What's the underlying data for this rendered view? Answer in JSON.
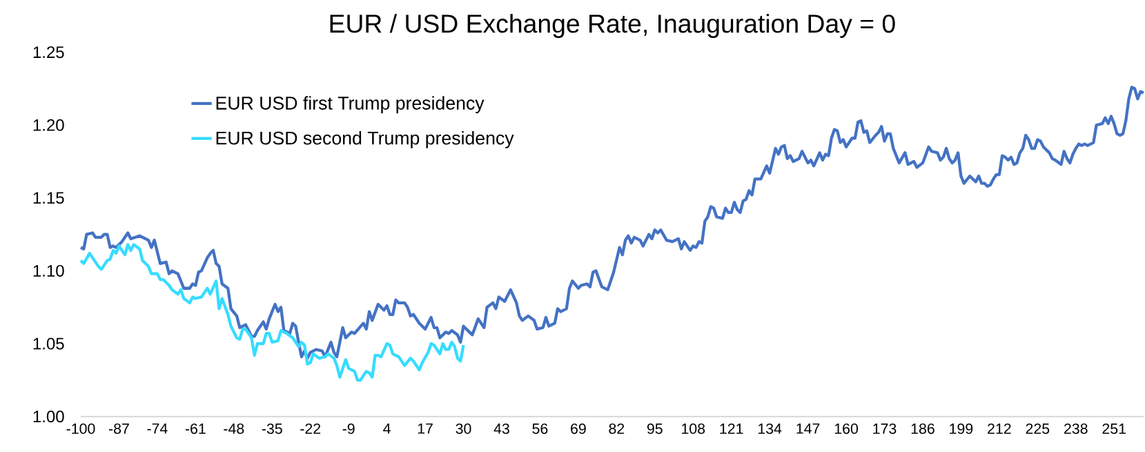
{
  "chart_data": {
    "type": "line",
    "title": "EUR / USD Exchange Rate, Inauguration Day = 0",
    "xlim": [
      -100,
      261
    ],
    "xticks": [
      -100,
      -87,
      -74,
      -61,
      -48,
      -35,
      -22,
      -9,
      4,
      17,
      30,
      43,
      56,
      69,
      82,
      95,
      108,
      121,
      134,
      147,
      160,
      173,
      186,
      199,
      212,
      225,
      238,
      251
    ],
    "ylim": [
      1.0,
      1.25
    ],
    "yticks": [
      {
        "value": 1.0,
        "label": "1.00"
      },
      {
        "value": 1.05,
        "label": "1.05"
      },
      {
        "value": 1.1,
        "label": "1.10"
      },
      {
        "value": 1.15,
        "label": "1.15"
      },
      {
        "value": 1.2,
        "label": "1.20"
      },
      {
        "value": 1.25,
        "label": "1.25"
      }
    ],
    "grid": false,
    "legend": "top left",
    "marker": "none",
    "line_style": "solid",
    "series": [
      {
        "name": "EUR USD first Trump presidency",
        "color": "#4472c4",
        "x": [
          -100,
          -99,
          -98,
          -96,
          -95,
          -93,
          -92,
          -91,
          -90,
          -89,
          -88,
          -86,
          -84,
          -83,
          -80,
          -78,
          -77,
          -76,
          -75,
          -73,
          -71,
          -70,
          -69,
          -67,
          -65,
          -63,
          -62,
          -61,
          -60,
          -59,
          -57,
          -56,
          -55,
          -54,
          -53,
          -52,
          -50,
          -49,
          -47,
          -46,
          -44,
          -42,
          -41,
          -40,
          -38,
          -37,
          -36,
          -34,
          -33,
          -32,
          -31,
          -29,
          -28,
          -27,
          -26,
          -25,
          -24,
          -23,
          -22,
          -20,
          -18,
          -17,
          -15,
          -14,
          -13,
          -11,
          -10,
          -8,
          -7,
          -4,
          -3,
          -2,
          -1,
          1,
          3,
          4,
          5,
          6,
          7,
          8,
          10,
          11,
          12,
          13,
          15,
          17,
          19,
          20,
          21,
          22,
          24,
          25,
          26,
          28,
          29,
          30,
          32,
          33,
          35,
          37,
          38,
          40,
          41,
          42,
          44,
          46,
          48,
          49,
          50,
          52,
          54,
          55,
          57,
          58,
          59,
          61,
          62,
          63,
          65,
          66,
          67,
          69,
          70,
          72,
          73,
          74,
          75,
          77,
          79,
          81,
          83,
          84,
          85,
          86,
          87,
          88,
          90,
          91,
          93,
          94,
          95,
          96,
          97,
          99,
          101,
          103,
          104,
          105,
          107,
          108,
          109,
          110,
          111,
          112,
          113,
          114,
          115,
          116,
          118,
          119,
          120,
          121,
          122,
          123,
          124,
          125,
          126,
          127,
          128,
          129,
          131,
          133,
          134,
          136,
          137,
          138,
          139,
          140,
          141,
          142,
          144,
          145,
          147,
          148,
          149,
          151,
          152,
          153,
          154,
          155,
          156,
          157,
          158,
          159,
          160,
          162,
          163,
          164,
          165,
          166,
          167,
          168,
          170,
          171,
          172,
          173,
          174,
          175,
          176,
          178,
          180,
          181,
          183,
          184,
          186,
          188,
          189,
          191,
          192,
          193,
          194,
          195,
          196,
          197,
          198,
          199,
          200,
          202,
          204,
          205,
          206,
          207,
          208,
          209,
          210,
          211,
          212,
          213,
          214,
          215,
          216,
          217,
          218,
          219,
          220,
          221,
          222,
          223,
          224,
          225,
          226,
          227,
          229,
          230,
          231,
          233,
          234,
          235,
          236,
          237,
          238,
          239,
          240,
          241,
          242,
          244,
          245,
          247,
          248,
          249,
          250,
          251,
          252,
          253,
          254,
          255,
          256,
          257,
          258,
          259,
          260,
          261
        ],
        "values": [
          1.116,
          1.115,
          1.125,
          1.126,
          1.123,
          1.123,
          1.125,
          1.125,
          1.116,
          1.117,
          1.116,
          1.12,
          1.126,
          1.122,
          1.124,
          1.122,
          1.121,
          1.116,
          1.121,
          1.105,
          1.106,
          1.098,
          1.1,
          1.098,
          1.088,
          1.088,
          1.091,
          1.09,
          1.099,
          1.1,
          1.109,
          1.112,
          1.114,
          1.105,
          1.103,
          1.091,
          1.088,
          1.074,
          1.069,
          1.061,
          1.063,
          1.055,
          1.055,
          1.059,
          1.065,
          1.06,
          1.067,
          1.077,
          1.072,
          1.075,
          1.059,
          1.057,
          1.064,
          1.062,
          1.051,
          1.041,
          1.045,
          1.04,
          1.044,
          1.046,
          1.045,
          1.041,
          1.051,
          1.044,
          1.041,
          1.061,
          1.054,
          1.058,
          1.057,
          1.064,
          1.06,
          1.072,
          1.066,
          1.077,
          1.073,
          1.076,
          1.07,
          1.07,
          1.08,
          1.078,
          1.078,
          1.075,
          1.069,
          1.07,
          1.064,
          1.06,
          1.068,
          1.061,
          1.061,
          1.054,
          1.058,
          1.057,
          1.059,
          1.056,
          1.051,
          1.062,
          1.058,
          1.056,
          1.067,
          1.061,
          1.075,
          1.078,
          1.074,
          1.082,
          1.079,
          1.087,
          1.078,
          1.069,
          1.066,
          1.069,
          1.066,
          1.06,
          1.061,
          1.068,
          1.062,
          1.064,
          1.074,
          1.072,
          1.074,
          1.088,
          1.093,
          1.088,
          1.09,
          1.091,
          1.089,
          1.099,
          1.1,
          1.089,
          1.087,
          1.099,
          1.116,
          1.111,
          1.121,
          1.124,
          1.119,
          1.123,
          1.121,
          1.117,
          1.125,
          1.122,
          1.128,
          1.126,
          1.128,
          1.121,
          1.12,
          1.122,
          1.115,
          1.12,
          1.114,
          1.117,
          1.116,
          1.12,
          1.119,
          1.134,
          1.137,
          1.144,
          1.143,
          1.137,
          1.136,
          1.143,
          1.14,
          1.14,
          1.147,
          1.142,
          1.14,
          1.148,
          1.149,
          1.155,
          1.152,
          1.163,
          1.163,
          1.172,
          1.167,
          1.184,
          1.18,
          1.185,
          1.186,
          1.177,
          1.179,
          1.175,
          1.177,
          1.182,
          1.174,
          1.176,
          1.172,
          1.181,
          1.176,
          1.18,
          1.179,
          1.191,
          1.197,
          1.196,
          1.188,
          1.19,
          1.185,
          1.191,
          1.191,
          1.202,
          1.203,
          1.195,
          1.196,
          1.188,
          1.193,
          1.195,
          1.199,
          1.189,
          1.194,
          1.194,
          1.184,
          1.174,
          1.181,
          1.173,
          1.175,
          1.171,
          1.174,
          1.185,
          1.182,
          1.181,
          1.176,
          1.178,
          1.184,
          1.177,
          1.174,
          1.176,
          1.181,
          1.165,
          1.16,
          1.165,
          1.161,
          1.165,
          1.16,
          1.16,
          1.158,
          1.159,
          1.163,
          1.166,
          1.166,
          1.179,
          1.178,
          1.176,
          1.178,
          1.173,
          1.174,
          1.181,
          1.184,
          1.193,
          1.19,
          1.184,
          1.184,
          1.19,
          1.189,
          1.185,
          1.181,
          1.177,
          1.176,
          1.173,
          1.182,
          1.177,
          1.174,
          1.18,
          1.184,
          1.187,
          1.186,
          1.187,
          1.186,
          1.188,
          1.2,
          1.201,
          1.205,
          1.201,
          1.206,
          1.201,
          1.194,
          1.193,
          1.194,
          1.203,
          1.218,
          1.226,
          1.225,
          1.218,
          1.223,
          1.222
        ]
      },
      {
        "name": "EUR USD second Trump presidency",
        "color": "#36dcff",
        "x": [
          -100,
          -99,
          -97,
          -96,
          -94,
          -93,
          -91,
          -90,
          -89,
          -88,
          -87,
          -85,
          -84,
          -83,
          -82,
          -80,
          -79,
          -77,
          -76,
          -74,
          -73,
          -72,
          -70,
          -69,
          -67,
          -66,
          -65,
          -63,
          -62,
          -61,
          -59,
          -57,
          -56,
          -54,
          -53,
          -52,
          -50,
          -49,
          -47,
          -46,
          -45,
          -44,
          -42,
          -41,
          -40,
          -38,
          -37,
          -36,
          -35,
          -33,
          -32,
          -30,
          -28,
          -26,
          -25,
          -24,
          -23,
          -22,
          -21,
          -19,
          -17,
          -16,
          -14,
          -13,
          -12,
          -10,
          -9,
          -7,
          -6,
          -5,
          -3,
          -2,
          -1,
          0,
          1,
          2,
          4,
          5,
          6,
          8,
          10,
          12,
          13,
          15,
          16,
          18,
          19,
          20,
          22,
          23,
          24,
          25,
          26,
          27,
          28,
          29,
          30
        ],
        "values": [
          1.107,
          1.105,
          1.112,
          1.109,
          1.103,
          1.101,
          1.107,
          1.108,
          1.114,
          1.112,
          1.117,
          1.111,
          1.118,
          1.114,
          1.118,
          1.115,
          1.107,
          1.103,
          1.098,
          1.098,
          1.094,
          1.094,
          1.09,
          1.087,
          1.084,
          1.087,
          1.081,
          1.078,
          1.082,
          1.081,
          1.082,
          1.088,
          1.084,
          1.093,
          1.074,
          1.081,
          1.07,
          1.062,
          1.054,
          1.053,
          1.06,
          1.06,
          1.054,
          1.042,
          1.05,
          1.05,
          1.057,
          1.057,
          1.051,
          1.052,
          1.059,
          1.057,
          1.054,
          1.048,
          1.051,
          1.049,
          1.036,
          1.037,
          1.043,
          1.04,
          1.041,
          1.043,
          1.04,
          1.035,
          1.027,
          1.039,
          1.033,
          1.031,
          1.025,
          1.025,
          1.031,
          1.03,
          1.027,
          1.042,
          1.042,
          1.041,
          1.05,
          1.049,
          1.043,
          1.041,
          1.035,
          1.04,
          1.038,
          1.032,
          1.037,
          1.044,
          1.05,
          1.049,
          1.043,
          1.05,
          1.046,
          1.046,
          1.051,
          1.048,
          1.04,
          1.038,
          1.049
        ]
      }
    ]
  }
}
